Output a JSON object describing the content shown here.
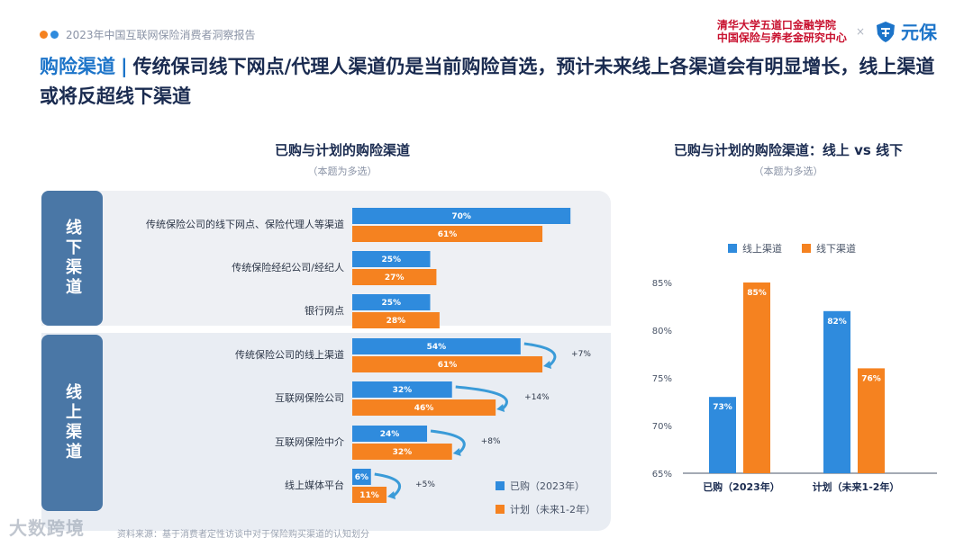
{
  "header": {
    "report_title": "2023年中国互联网保险消费者洞察报告",
    "partner_line1": "清华大学五道口金融学院",
    "partner_line2": "中国保险与养老金研究中心",
    "separator": "×",
    "logo_text": "元保"
  },
  "headline": {
    "key": "购险渠道",
    "separator": "|",
    "text": "传统保司线下网点/代理人渠道仍是当前购险首选，预计未来线上各渠道会有明显增长，线上渠道或将反超线下渠道"
  },
  "colors": {
    "purchased": "#2f8bdd",
    "planned": "#f58220",
    "accent": "#1c74c9",
    "group_tab": "#4a77a6"
  },
  "groups": [
    {
      "label": "线下渠道"
    },
    {
      "label": "线上渠道"
    }
  ],
  "chart_data": [
    {
      "type": "bar",
      "orientation": "horizontal",
      "title": "已购与计划的购险渠道",
      "subtitle": "（本题为多选）",
      "categories": [
        "传统保险公司的线下网点、保险代理人等渠道",
        "传统保险经纪公司/经纪人",
        "银行网点",
        "传统保险公司的线上渠道",
        "互联网保险公司",
        "互联网保险中介",
        "线上媒体平台"
      ],
      "series": [
        {
          "name": "已购（2023年）",
          "values": [
            70,
            25,
            25,
            54,
            32,
            24,
            6
          ]
        },
        {
          "name": "计划（未来1-2年）",
          "values": [
            61,
            27,
            28,
            61,
            46,
            32,
            11
          ]
        }
      ],
      "data_labels": {
        "已购（2023年）": [
          "70%",
          "25%",
          "25%",
          "54%",
          "32%",
          "24%",
          "6%"
        ],
        "计划（未来1-2年）": [
          "61%",
          "27%",
          "28%",
          "61%",
          "46%",
          "32%",
          "11%"
        ]
      },
      "annotations": [
        "+7%",
        "+14%",
        "+8%",
        "+5%"
      ],
      "legend_position": "bottom-right"
    },
    {
      "type": "bar",
      "title": "已购与计划的购险渠道：线上 vs 线下",
      "subtitle": "（本题为多选）",
      "categories": [
        "已购（2023年）",
        "计划（未来1-2年）"
      ],
      "series": [
        {
          "name": "线上渠道",
          "values": [
            73,
            82
          ]
        },
        {
          "name": "线下渠道",
          "values": [
            85,
            76
          ]
        }
      ],
      "data_labels": {
        "线上渠道": [
          "73%",
          "82%"
        ],
        "线下渠道": [
          "85%",
          "76%"
        ]
      },
      "ylim": [
        65,
        85
      ],
      "yticks": [
        "65%",
        "70%",
        "75%",
        "80%",
        "85%"
      ],
      "legend_position": "top"
    }
  ],
  "footnote": "资料来源：基于消费者定性访谈中对于保险购买渠道的认知划分",
  "watermark": "大数跨境"
}
